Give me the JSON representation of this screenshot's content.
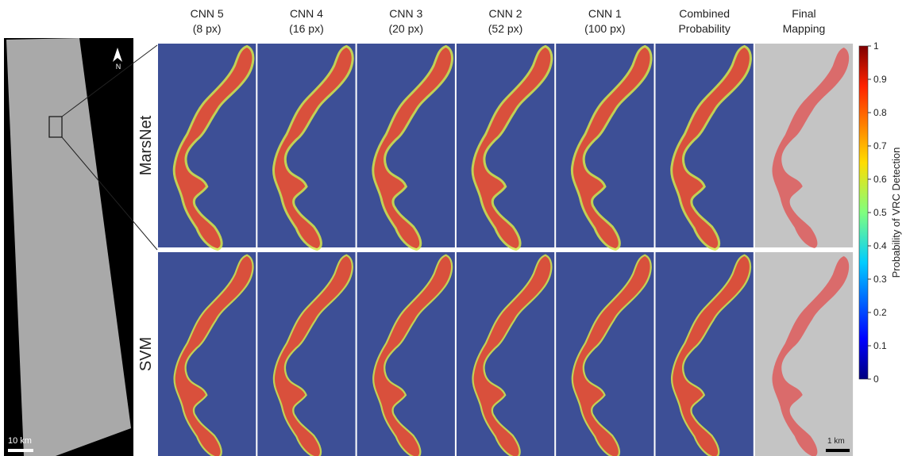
{
  "header": {
    "columns": [
      {
        "title": "CNN 5",
        "subtitle": "(8 px)"
      },
      {
        "title": "CNN 4",
        "subtitle": "(16 px)"
      },
      {
        "title": "CNN 3",
        "subtitle": "(20 px)"
      },
      {
        "title": "CNN 2",
        "subtitle": "(52 px)"
      },
      {
        "title": "CNN 1",
        "subtitle": "(100 px)"
      },
      {
        "title": "Combined",
        "subtitle": "Probability"
      },
      {
        "title": "Final",
        "subtitle": "Mapping"
      }
    ]
  },
  "rows": [
    "MarsNet",
    "SVM"
  ],
  "context_image": {
    "north": "N",
    "scale_bar": "10 km"
  },
  "final_scale_bar": "1 km",
  "colorbar": {
    "label": "Probability of VRC Detection",
    "lim": [
      0,
      1
    ],
    "ticks": [
      0,
      0.1,
      0.2,
      0.3,
      0.4,
      0.5,
      0.6,
      0.7,
      0.8,
      0.9,
      1
    ]
  }
}
